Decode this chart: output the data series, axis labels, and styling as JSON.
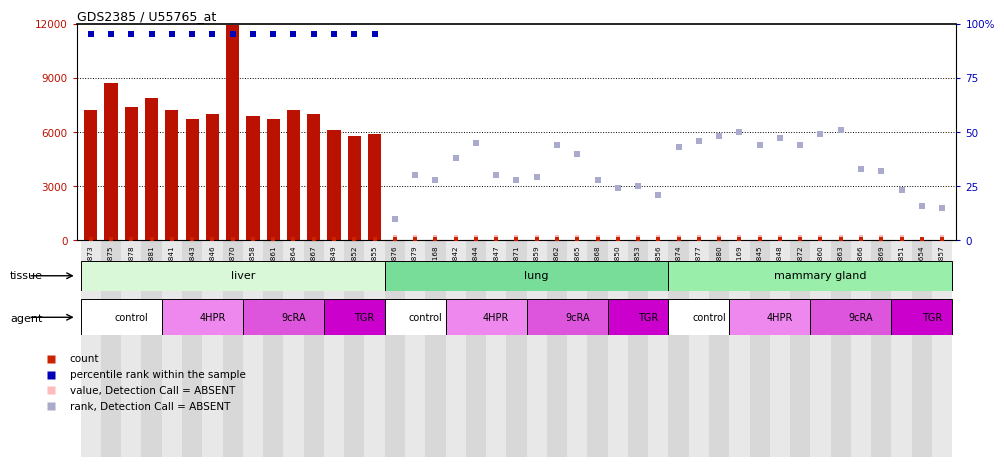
{
  "title": "GDS2385 / U55765_at",
  "samples": [
    "GSM89873",
    "GSM89875",
    "GSM89878",
    "GSM89881",
    "GSM89841",
    "GSM89843",
    "GSM89846",
    "GSM89870",
    "GSM89858",
    "GSM89861",
    "GSM89864",
    "GSM89867",
    "GSM89849",
    "GSM89852",
    "GSM89855",
    "GSM89876",
    "GSM89879",
    "GSM90168",
    "GSM89842",
    "GSM89844",
    "GSM89847",
    "GSM89871",
    "GSM89859",
    "GSM89862",
    "GSM89865",
    "GSM89868",
    "GSM89850",
    "GSM89853",
    "GSM89856",
    "GSM89874",
    "GSM89877",
    "GSM89880",
    "GSM90169",
    "GSM89845",
    "GSM89848",
    "GSM89872",
    "GSM89860",
    "GSM89863",
    "GSM89866",
    "GSM89869",
    "GSM89851",
    "GSM89654",
    "GSM89857"
  ],
  "bar_heights": [
    7200,
    8700,
    7400,
    7900,
    7200,
    6700,
    7000,
    11900,
    6900,
    6700,
    7200,
    7000,
    6100,
    5800,
    5900,
    null,
    null,
    null,
    null,
    null,
    null,
    null,
    null,
    null,
    null,
    null,
    null,
    null,
    null,
    null,
    null,
    null,
    null,
    null,
    null,
    null,
    null,
    null,
    null,
    null,
    null,
    null,
    null
  ],
  "pct_present": [
    95,
    95,
    95,
    95,
    95,
    95,
    95,
    95,
    95,
    95,
    95,
    95,
    95,
    95,
    95,
    null,
    null,
    null,
    null,
    null,
    null,
    null,
    null,
    null,
    null,
    null,
    null,
    null,
    null,
    null,
    null,
    null,
    null,
    null,
    null,
    null,
    null,
    null,
    null,
    null,
    null,
    null,
    null
  ],
  "pct_absent": [
    null,
    null,
    null,
    null,
    null,
    null,
    null,
    null,
    null,
    null,
    null,
    null,
    null,
    null,
    null,
    10,
    30,
    28,
    38,
    45,
    30,
    28,
    29,
    44,
    40,
    28,
    24,
    25,
    21,
    43,
    46,
    48,
    50,
    44,
    47,
    44,
    49,
    51,
    33,
    32,
    23,
    16,
    15
  ],
  "count_present": [
    true,
    true,
    true,
    true,
    true,
    true,
    true,
    true,
    true,
    true,
    true,
    true,
    true,
    true,
    true,
    false,
    false,
    false,
    false,
    false,
    false,
    false,
    false,
    false,
    false,
    false,
    false,
    false,
    false,
    false,
    false,
    false,
    false,
    false,
    false,
    false,
    false,
    false,
    false,
    false,
    false,
    false,
    false
  ],
  "count_absent": [
    false,
    false,
    false,
    false,
    false,
    false,
    false,
    false,
    false,
    false,
    false,
    false,
    false,
    false,
    false,
    true,
    true,
    true,
    true,
    true,
    true,
    true,
    true,
    true,
    true,
    true,
    true,
    true,
    true,
    true,
    true,
    true,
    true,
    true,
    true,
    true,
    true,
    true,
    true,
    true,
    true,
    true,
    true
  ],
  "val_absent": [
    false,
    false,
    false,
    false,
    false,
    false,
    false,
    false,
    false,
    false,
    false,
    false,
    false,
    false,
    false,
    true,
    true,
    true,
    true,
    true,
    true,
    true,
    true,
    true,
    true,
    true,
    true,
    true,
    true,
    true,
    true,
    true,
    true,
    true,
    true,
    true,
    true,
    true,
    true,
    true,
    true,
    false,
    true
  ],
  "tissue_groups": [
    {
      "label": "liver",
      "start": 0,
      "end": 15,
      "color": "#d8f8d8"
    },
    {
      "label": "lung",
      "start": 15,
      "end": 29,
      "color": "#77dd99"
    },
    {
      "label": "mammary gland",
      "start": 29,
      "end": 43,
      "color": "#99eeaa"
    }
  ],
  "agent_groups_liver": [
    {
      "label": "control",
      "start": 0,
      "end": 4,
      "color": "#ffffff"
    },
    {
      "label": "4HPR",
      "start": 4,
      "end": 8,
      "color": "#ee88ee"
    },
    {
      "label": "9cRA",
      "start": 8,
      "end": 12,
      "color": "#dd55dd"
    },
    {
      "label": "TGR",
      "start": 12,
      "end": 15,
      "color": "#cc00cc"
    }
  ],
  "agent_groups": [
    {
      "label": "control",
      "start": 0,
      "end": 4,
      "color": "#ffffff"
    },
    {
      "label": "4HPR",
      "start": 4,
      "end": 8,
      "color": "#ee88ee"
    },
    {
      "label": "9cRA",
      "start": 8,
      "end": 12,
      "color": "#dd55dd"
    },
    {
      "label": "TGR",
      "start": 12,
      "end": 15,
      "color": "#cc00cc"
    },
    {
      "label": "control",
      "start": 15,
      "end": 18,
      "color": "#ffffff"
    },
    {
      "label": "4HPR",
      "start": 18,
      "end": 22,
      "color": "#ee88ee"
    },
    {
      "label": "9cRA",
      "start": 22,
      "end": 26,
      "color": "#dd55dd"
    },
    {
      "label": "TGR",
      "start": 26,
      "end": 29,
      "color": "#cc00cc"
    },
    {
      "label": "control",
      "start": 29,
      "end": 32,
      "color": "#ffffff"
    },
    {
      "label": "4HPR",
      "start": 32,
      "end": 36,
      "color": "#ee88ee"
    },
    {
      "label": "9cRA",
      "start": 36,
      "end": 40,
      "color": "#dd55dd"
    },
    {
      "label": "TGR",
      "start": 40,
      "end": 43,
      "color": "#cc00cc"
    }
  ],
  "ylim_left": [
    0,
    12000
  ],
  "ylim_right": [
    0,
    100
  ],
  "yticks_left": [
    0,
    3000,
    6000,
    9000,
    12000
  ],
  "yticks_right": [
    0,
    25,
    50,
    75,
    100
  ],
  "bar_color": "#bb1100",
  "dot_present_color": "#0000bb",
  "dot_absent_color": "#aaaacc",
  "count_present_color": "#cc2200",
  "val_absent_color": "#ffbbbb",
  "count_absent_color": "#cc2200",
  "legend_items": [
    {
      "color": "#cc2200",
      "label": "count"
    },
    {
      "color": "#0000bb",
      "label": "percentile rank within the sample"
    },
    {
      "color": "#ffbbbb",
      "label": "value, Detection Call = ABSENT"
    },
    {
      "color": "#aaaacc",
      "label": "rank, Detection Call = ABSENT"
    }
  ]
}
